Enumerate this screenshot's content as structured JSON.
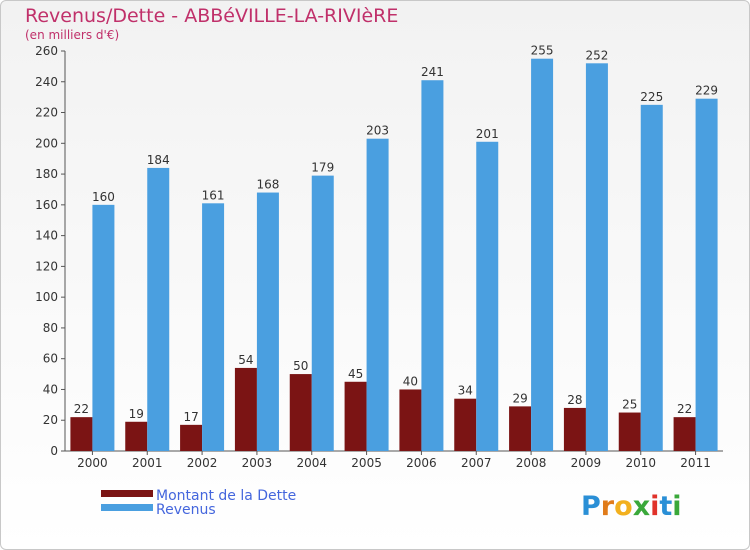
{
  "header": {
    "title": "Revenus/Dette - ABBéVILLE-LA-RIVIèRE",
    "unit": "(en milliers d'€)"
  },
  "legend": {
    "debt_label": "Montant de la Dette",
    "revenue_label": "Revenus"
  },
  "logo": {
    "letters": [
      "P",
      "r",
      "o",
      "x",
      "i",
      "t",
      "i"
    ],
    "colors": [
      "#2a8fd6",
      "#e07b1a",
      "#f2b01e",
      "#3aa83a",
      "#e0322a",
      "#2a8fd6",
      "#3aa83a"
    ]
  },
  "colors": {
    "debt": "#7b1414",
    "revenue": "#4a9fe0",
    "title": "#c0306a",
    "legend_text": "#4466dd"
  },
  "chart_data": {
    "type": "bar",
    "categories": [
      "2000",
      "2001",
      "2002",
      "2003",
      "2004",
      "2005",
      "2006",
      "2007",
      "2008",
      "2009",
      "2010",
      "2011"
    ],
    "series": [
      {
        "name": "Montant de la Dette",
        "values": [
          22,
          19,
          17,
          54,
          50,
          45,
          40,
          34,
          29,
          28,
          25,
          22
        ]
      },
      {
        "name": "Revenus",
        "values": [
          160,
          184,
          161,
          168,
          179,
          203,
          241,
          201,
          255,
          252,
          225,
          229
        ]
      }
    ],
    "ylim": [
      0,
      260
    ],
    "yticks": [
      0,
      20,
      40,
      60,
      80,
      100,
      120,
      140,
      160,
      180,
      200,
      220,
      240,
      260
    ],
    "grid": false,
    "legend_position": "bottom-left"
  }
}
